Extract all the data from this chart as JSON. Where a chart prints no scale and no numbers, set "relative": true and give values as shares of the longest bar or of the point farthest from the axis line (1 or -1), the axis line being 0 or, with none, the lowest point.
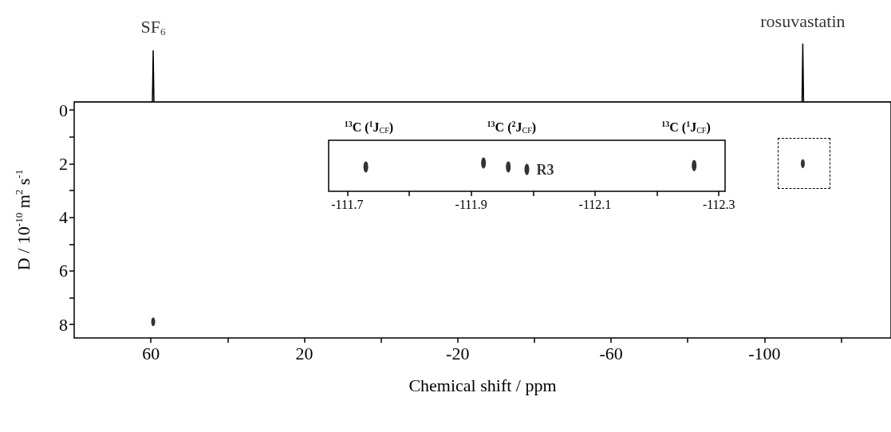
{
  "chart_data": [
    {
      "type": "line",
      "relative": true,
      "color": "#000000",
      "tick_labels": false,
      "xlim": [
        80,
        -133
      ],
      "x": [
        80,
        59.6,
        59.4,
        59.2,
        -109.8,
        -110,
        -110.2,
        -133
      ],
      "values": [
        0,
        0,
        0.88,
        0,
        0,
        1,
        0,
        0
      ],
      "annotations": [
        {
          "text": "SF$_{6}$",
          "x": 59.4,
          "y": 0.88
        },
        {
          "text": "rosuvastatin",
          "x": -110,
          "y": 1
        }
      ]
    },
    {
      "type": "scatter",
      "color": "#000000",
      "xlabel": "Chemical shift / ppm",
      "ylabel": "D / 10$^{-10}$ m$^{2}$ s$^{-1}$",
      "xlim": [
        80,
        -133
      ],
      "ylim": [
        8.5,
        -0.3
      ],
      "xticks": [
        60,
        {
          "value": 40,
          "label": null
        },
        20,
        {
          "value": 0,
          "label": null
        },
        -20,
        {
          "value": -40,
          "label": null
        },
        -60,
        {
          "value": -80,
          "label": null
        },
        -100,
        {
          "value": -120,
          "label": null
        }
      ],
      "yticks": [
        0,
        {
          "value": 1,
          "label": null
        },
        2,
        {
          "value": 3,
          "label": null
        },
        4,
        {
          "value": 5,
          "label": null
        },
        6,
        {
          "value": 7,
          "label": null
        },
        8
      ],
      "x": [
        59.4,
        -110
      ],
      "values": [
        7.9,
        2.0
      ]
    },
    {
      "type": "scatter",
      "color": "#000000",
      "relative": true,
      "tick_labels": "x",
      "xlim": [
        -111.67,
        -112.31
      ],
      "xticks": [
        -111.7,
        {
          "value": -111.8,
          "label": null
        },
        -111.9,
        {
          "value": -112.0,
          "label": null
        },
        -112.1,
        {
          "value": -112.2,
          "label": null
        },
        -112.3
      ],
      "x": [
        -111.73,
        -111.92,
        -111.96,
        -111.99,
        -112.26
      ],
      "values": [
        0.86,
        1,
        0.86,
        0.77,
        0.91
      ],
      "annotations": [
        "$^{13}$C ($^{1}$J$_{CF}$)",
        "$^{13}$C ($^{2}$J$_{CF}$)",
        "$^{13}$C ($^{1}$J$_{CF}$)",
        {
          "text": "R3",
          "x": -111.99,
          "y": 0.77
        }
      ]
    }
  ]
}
